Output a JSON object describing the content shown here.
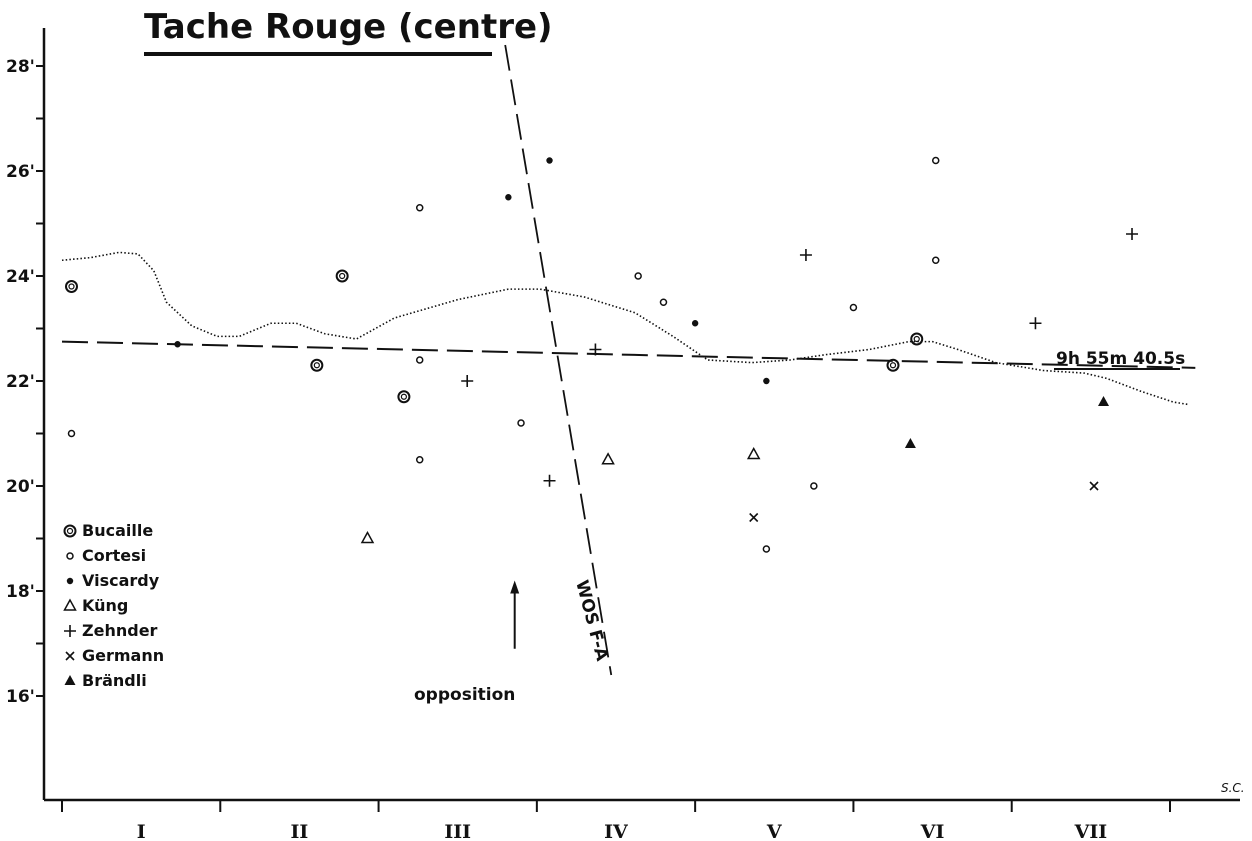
{
  "chart_data": {
    "type": "scatter",
    "title": "Tache Rouge (centre)",
    "x_categories": [
      "I",
      "II",
      "III",
      "IV",
      "V",
      "VI",
      "VII"
    ],
    "xlim": [
      0,
      7.2
    ],
    "ylim": [
      14.0,
      28.6
    ],
    "y_ticks": [
      16,
      17,
      18,
      19,
      20,
      21,
      22,
      23,
      24,
      25,
      26,
      27,
      28
    ],
    "y_tick_labels": [
      {
        "value": 16,
        "label": "16'"
      },
      {
        "value": 18,
        "label": "18'"
      },
      {
        "value": 20,
        "label": "20'"
      },
      {
        "value": 22,
        "label": "22'"
      },
      {
        "value": 24,
        "label": "24'"
      },
      {
        "value": 26,
        "label": "26'"
      },
      {
        "value": 28,
        "label": "28'"
      }
    ],
    "grid": false,
    "legend_position": "bottom-left",
    "series": [
      {
        "name": "Bucaille",
        "marker": "double-circle",
        "points": [
          {
            "x": 0.06,
            "y": 23.8
          },
          {
            "x": 1.61,
            "y": 22.3
          },
          {
            "x": 1.77,
            "y": 24.0
          },
          {
            "x": 2.16,
            "y": 21.7
          },
          {
            "x": 5.25,
            "y": 22.3
          },
          {
            "x": 5.4,
            "y": 22.8
          }
        ]
      },
      {
        "name": "Cortesi",
        "marker": "open-circle",
        "points": [
          {
            "x": 0.06,
            "y": 21.0
          },
          {
            "x": 2.26,
            "y": 25.3
          },
          {
            "x": 2.26,
            "y": 22.4
          },
          {
            "x": 2.26,
            "y": 20.5
          },
          {
            "x": 2.9,
            "y": 21.2
          },
          {
            "x": 3.64,
            "y": 24.0
          },
          {
            "x": 3.8,
            "y": 23.5
          },
          {
            "x": 4.45,
            "y": 18.8
          },
          {
            "x": 4.75,
            "y": 20.0
          },
          {
            "x": 5.0,
            "y": 23.4
          },
          {
            "x": 5.52,
            "y": 26.2
          },
          {
            "x": 5.52,
            "y": 24.3
          }
        ]
      },
      {
        "name": "Viscardy",
        "marker": "filled-circle",
        "points": [
          {
            "x": 0.73,
            "y": 22.7
          },
          {
            "x": 2.82,
            "y": 25.5
          },
          {
            "x": 3.08,
            "y": 26.2
          },
          {
            "x": 4.0,
            "y": 23.1
          },
          {
            "x": 4.45,
            "y": 22.0
          }
        ]
      },
      {
        "name": "Küng",
        "marker": "open-triangle",
        "points": [
          {
            "x": 1.93,
            "y": 19.0
          },
          {
            "x": 3.45,
            "y": 20.5
          },
          {
            "x": 4.37,
            "y": 20.6
          }
        ]
      },
      {
        "name": "Zehnder",
        "marker": "plus",
        "points": [
          {
            "x": 2.56,
            "y": 22.0
          },
          {
            "x": 3.08,
            "y": 20.1
          },
          {
            "x": 3.37,
            "y": 22.6
          },
          {
            "x": 4.7,
            "y": 24.4
          },
          {
            "x": 6.15,
            "y": 23.1
          },
          {
            "x": 6.76,
            "y": 24.8
          }
        ]
      },
      {
        "name": "Germann",
        "marker": "cross",
        "points": [
          {
            "x": 4.37,
            "y": 19.4
          },
          {
            "x": 6.52,
            "y": 20.0
          }
        ]
      },
      {
        "name": "Brändli",
        "marker": "filled-triangle",
        "points": [
          {
            "x": 5.36,
            "y": 20.8
          },
          {
            "x": 6.58,
            "y": 21.6
          }
        ]
      }
    ],
    "lines": {
      "smooth_curve": {
        "style": "dotted",
        "points": [
          [
            0.0,
            24.3
          ],
          [
            0.18,
            24.35
          ],
          [
            0.36,
            24.45
          ],
          [
            0.48,
            24.42
          ],
          [
            0.58,
            24.1
          ],
          [
            0.66,
            23.5
          ],
          [
            0.82,
            23.05
          ],
          [
            0.98,
            22.85
          ],
          [
            1.12,
            22.85
          ],
          [
            1.32,
            23.1
          ],
          [
            1.48,
            23.1
          ],
          [
            1.66,
            22.9
          ],
          [
            1.86,
            22.8
          ],
          [
            2.1,
            23.2
          ],
          [
            2.5,
            23.55
          ],
          [
            2.82,
            23.75
          ],
          [
            3.02,
            23.75
          ],
          [
            3.3,
            23.6
          ],
          [
            3.62,
            23.3
          ],
          [
            3.86,
            22.85
          ],
          [
            4.08,
            22.4
          ],
          [
            4.36,
            22.35
          ],
          [
            4.6,
            22.4
          ],
          [
            4.82,
            22.5
          ],
          [
            5.1,
            22.6
          ],
          [
            5.35,
            22.75
          ],
          [
            5.5,
            22.75
          ],
          [
            5.66,
            22.6
          ],
          [
            5.9,
            22.35
          ],
          [
            6.2,
            22.2
          ],
          [
            6.46,
            22.15
          ],
          [
            6.6,
            22.05
          ],
          [
            6.82,
            21.8
          ],
          [
            7.02,
            21.6
          ],
          [
            7.12,
            21.55
          ]
        ]
      },
      "dashed_trend": {
        "style": "dashed",
        "points": [
          [
            0.0,
            22.75
          ],
          [
            7.16,
            22.25
          ]
        ],
        "label": "9h 55m 40.5s"
      },
      "wos_line": {
        "style": "dashed",
        "points": [
          [
            2.8,
            28.4
          ],
          [
            3.47,
            16.4
          ]
        ],
        "label": "WOS F-A"
      }
    },
    "annotations": {
      "opposition": {
        "label": "opposition",
        "x": 2.86,
        "y_from": 16.9,
        "y_to": 18.2
      },
      "signature": "S.C."
    }
  }
}
